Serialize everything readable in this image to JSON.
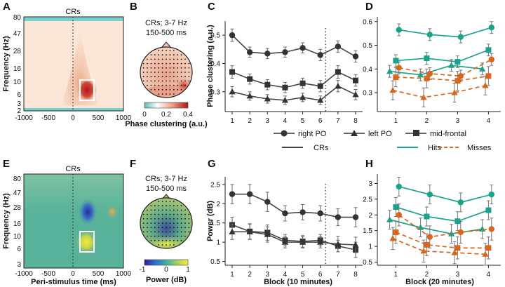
{
  "panel_letters": [
    "A",
    "B",
    "C",
    "D",
    "E",
    "F",
    "G",
    "H"
  ],
  "spectrogram_time_ticks": [
    "-1000",
    "-500",
    "0",
    "500",
    "1000"
  ],
  "spectrogram_freq_ticks": [
    "80",
    "47",
    "28",
    "16",
    "10",
    "6",
    "3",
    "2"
  ],
  "topo_title_line1": "CRs; 3-7 Hz",
  "topo_title_line2": "150-500 ms",
  "colors": {
    "right_po": "#333333",
    "left_po": "#333333",
    "mid_frontal": "#333333",
    "hits": "#1aa38a",
    "misses": "#d8661d",
    "crs": "#444444"
  },
  "legend": {
    "right_po": "right PO",
    "left_po": "left PO",
    "mid_frontal": "mid-frontal",
    "crs": "CRs",
    "hits": "Hits",
    "misses": "Misses"
  },
  "chart_data": [
    {
      "panel": "A",
      "type": "heatmap",
      "title": "CRs",
      "xlabel": "",
      "ylabel": "Frequency (Hz)",
      "x_ticks": [
        "-1000",
        "-500",
        "0",
        "500",
        "1000"
      ],
      "y_ticks": [
        "80",
        "47",
        "28",
        "16",
        "10",
        "6",
        "3",
        "2"
      ],
      "colorscale": "phase clustering",
      "highlight_window": {
        "time_ms": [
          150,
          500
        ],
        "freq_hz": [
          3,
          7
        ]
      }
    },
    {
      "panel": "B",
      "type": "heatmap",
      "title": "CRs; 3-7 Hz 150-500 ms",
      "colorbar_ticks": [
        "0",
        "0.2",
        "0.4"
      ],
      "colorbar_label": "Phase clustering (a.u.)"
    },
    {
      "panel": "C",
      "type": "line",
      "xlabel": "",
      "ylabel": "Phase clustering (a.u.)",
      "x": [
        1,
        2,
        3,
        4,
        5,
        6,
        7,
        8
      ],
      "ylim": [
        0.23,
        0.55
      ],
      "y_ticks": [
        "0.3",
        "0.4",
        "0.5"
      ],
      "x_ticks": [
        "1",
        "2",
        "3",
        "4",
        "5",
        "6",
        "7",
        "8"
      ],
      "series": [
        {
          "name": "right PO",
          "values": [
            0.5,
            0.44,
            0.435,
            0.44,
            0.455,
            0.43,
            0.46,
            0.425
          ]
        },
        {
          "name": "mid-frontal",
          "values": [
            0.37,
            0.345,
            0.325,
            0.315,
            0.33,
            0.32,
            0.37,
            0.34
          ]
        },
        {
          "name": "left PO",
          "values": [
            0.3,
            0.285,
            0.275,
            0.27,
            0.28,
            0.27,
            0.32,
            0.29
          ]
        }
      ],
      "errors": [
        [
          0.022,
          0.018,
          0.018,
          0.018,
          0.018,
          0.02,
          0.02,
          0.02
        ],
        [
          0.022,
          0.018,
          0.018,
          0.018,
          0.018,
          0.02,
          0.022,
          0.02
        ],
        [
          0.018,
          0.015,
          0.015,
          0.015,
          0.015,
          0.015,
          0.02,
          0.018
        ]
      ]
    },
    {
      "panel": "D",
      "type": "line",
      "xlabel": "",
      "ylabel": "",
      "x_ticks": [
        "1",
        "2",
        "3",
        "4"
      ],
      "xlim": [
        0.5,
        4.5
      ],
      "ylim": [
        0.22,
        0.62
      ],
      "y_ticks": [
        "0.3",
        "0.4",
        "0.5",
        "0.6"
      ],
      "series": [
        {
          "name": "Hits right PO",
          "x": [
            1.2,
            2.2,
            3.2,
            4.2
          ],
          "values": [
            0.565,
            0.545,
            0.535,
            0.575
          ]
        },
        {
          "name": "Hits mid-frontal",
          "x": [
            1.1,
            2.1,
            3.1,
            4.1
          ],
          "values": [
            0.435,
            0.445,
            0.43,
            0.48
          ]
        },
        {
          "name": "Hits left PO",
          "x": [
            0.9,
            1.9,
            2.9,
            3.9
          ],
          "values": [
            0.39,
            0.375,
            0.415,
            0.4
          ]
        },
        {
          "name": "Misses right PO",
          "x": [
            1.2,
            2.2,
            3.2,
            4.2
          ],
          "values": [
            0.405,
            0.38,
            0.37,
            0.44
          ]
        },
        {
          "name": "Misses mid-frontal",
          "x": [
            1.1,
            2.1,
            3.1,
            4.1
          ],
          "values": [
            0.365,
            0.36,
            0.35,
            0.37
          ]
        },
        {
          "name": "Misses left PO",
          "x": [
            1.0,
            2.0,
            3.0,
            4.0
          ],
          "values": [
            0.31,
            0.28,
            0.3,
            0.33
          ]
        }
      ],
      "errors": [
        0.025,
        0.025,
        0.025,
        0.025,
        0.04,
        0.04
      ]
    },
    {
      "panel": "E",
      "type": "heatmap",
      "title": "CRs",
      "xlabel": "Peri-stimulus time (ms)",
      "ylabel": "Frequency (Hz)",
      "x_ticks": [
        "-1000",
        "-500",
        "0",
        "500",
        "1000"
      ],
      "y_ticks": [
        "80",
        "47",
        "28",
        "16",
        "10",
        "6",
        "3"
      ],
      "colorscale": "power",
      "highlight_window": {
        "time_ms": [
          150,
          500
        ],
        "freq_hz": [
          3,
          7
        ]
      }
    },
    {
      "panel": "F",
      "type": "heatmap",
      "title": "CRs; 3-7 Hz 150-500 ms",
      "colorbar_ticks": [
        "-1",
        "0",
        "1"
      ],
      "colorbar_label": "Power (dB)"
    },
    {
      "panel": "G",
      "type": "line",
      "xlabel": "Block (10 minutes)",
      "ylabel": "Power (dB)",
      "x": [
        1,
        2,
        3,
        4,
        5,
        6,
        7,
        8
      ],
      "ylim": [
        0.4,
        2.7
      ],
      "y_ticks": [
        "0.5",
        "1",
        "1.5",
        "2",
        "2.5"
      ],
      "x_ticks": [
        "1",
        "2",
        "3",
        "4",
        "5",
        "6",
        "7",
        "8"
      ],
      "series": [
        {
          "name": "right PO",
          "values": [
            2.25,
            2.25,
            2.05,
            1.75,
            1.78,
            1.75,
            1.65,
            1.65
          ]
        },
        {
          "name": "mid-frontal",
          "values": [
            1.45,
            1.28,
            1.25,
            1.05,
            1.02,
            1.05,
            0.9,
            0.8
          ]
        },
        {
          "name": "left PO",
          "values": [
            1.27,
            1.27,
            1.2,
            1.0,
            1.0,
            1.0,
            0.95,
            0.93
          ]
        }
      ],
      "errors": [
        [
          0.25,
          0.25,
          0.25,
          0.2,
          0.2,
          0.2,
          0.22,
          0.25
        ],
        [
          0.2,
          0.2,
          0.2,
          0.15,
          0.15,
          0.15,
          0.15,
          0.2
        ],
        [
          0.2,
          0.2,
          0.2,
          0.15,
          0.15,
          0.15,
          0.2,
          0.2
        ]
      ]
    },
    {
      "panel": "H",
      "type": "line",
      "xlabel": "Block (20 minutes)",
      "ylabel": "",
      "x_ticks": [
        "1",
        "2",
        "3",
        "4"
      ],
      "xlim": [
        0.5,
        4.5
      ],
      "ylim": [
        0.4,
        3.3
      ],
      "y_ticks": [
        "0.5",
        "1",
        "1.5",
        "2",
        "2.5",
        "3"
      ],
      "series": [
        {
          "name": "Hits right PO",
          "x": [
            1.2,
            2.2,
            3.2,
            4.2
          ],
          "values": [
            2.9,
            2.65,
            2.4,
            2.65
          ]
        },
        {
          "name": "Hits mid-frontal",
          "x": [
            1.1,
            2.1,
            3.1,
            4.1
          ],
          "values": [
            2.25,
            1.95,
            1.8,
            2.15
          ]
        },
        {
          "name": "Hits left PO",
          "x": [
            0.9,
            1.9,
            2.9,
            3.9
          ],
          "values": [
            1.85,
            1.6,
            1.4,
            1.55
          ]
        },
        {
          "name": "Misses right PO",
          "x": [
            1.2,
            2.2,
            3.2,
            4.2
          ],
          "values": [
            2.0,
            1.3,
            1.45,
            1.55
          ]
        },
        {
          "name": "Misses mid-frontal",
          "x": [
            1.1,
            2.1,
            3.1,
            4.1
          ],
          "values": [
            1.45,
            1.05,
            0.95,
            0.95
          ]
        },
        {
          "name": "Misses left PO",
          "x": [
            1.0,
            2.0,
            3.0,
            4.0
          ],
          "values": [
            1.25,
            0.85,
            0.8,
            0.75
          ]
        }
      ],
      "errors": [
        0.3,
        0.3,
        0.3,
        0.35,
        0.35,
        0.35
      ]
    }
  ]
}
